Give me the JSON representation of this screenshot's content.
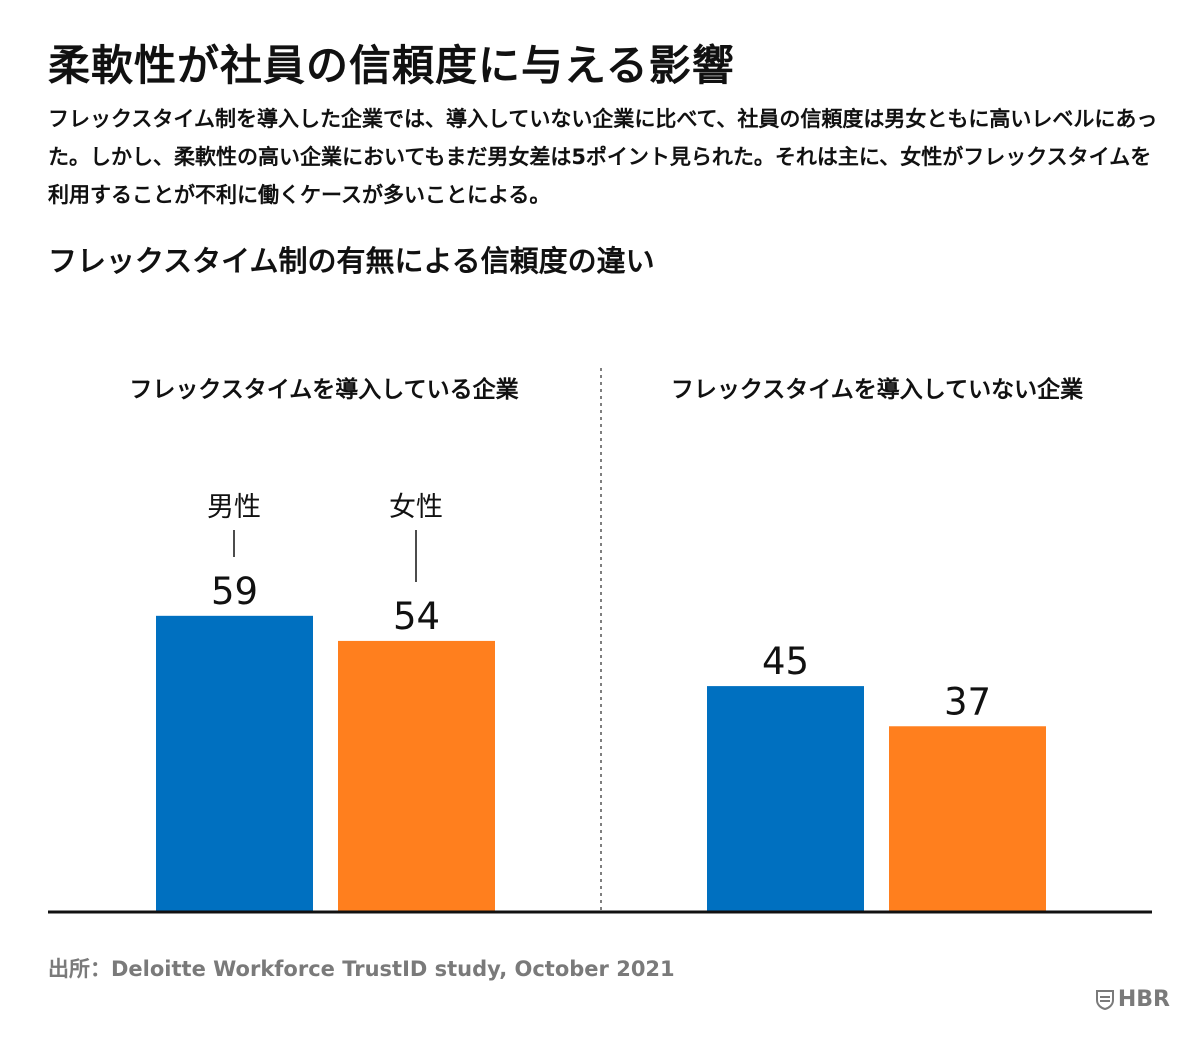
{
  "title": "柔軟性が社員の信頼度に与える影響",
  "subtitle": "フレックスタイム制を導入した企業では、導入していない企業に比べて、社員の信頼度は男女ともに高いレベルにあった。しかし、柔軟性の高い企業においてもまだ男女差は5ポイント見られた。それは主に、女性がフレックスタイムを利用することが不利に働くケースが多いことによる。",
  "source": "出所：Deloitte Workforce TrustID study, October 2021",
  "logo": {
    "text": "HBR",
    "icon": "hbr-shield-icon"
  },
  "colors": {
    "men": "#0070c0",
    "women": "#ff7f1e",
    "axis": "#111111",
    "divider": "#555555"
  },
  "chart_data": {
    "type": "bar",
    "title": "フレックスタイム制の有無による信頼度の違い",
    "groups": [
      "フレックスタイムを導入している企業",
      "フレックスタイムを導入していない企業"
    ],
    "series": [
      {
        "name": "男性",
        "values": [
          59,
          45
        ]
      },
      {
        "name": "女性",
        "values": [
          54,
          37
        ]
      }
    ],
    "ylim": [
      0,
      100
    ],
    "grid": false,
    "legend": "direct labels above first group"
  }
}
